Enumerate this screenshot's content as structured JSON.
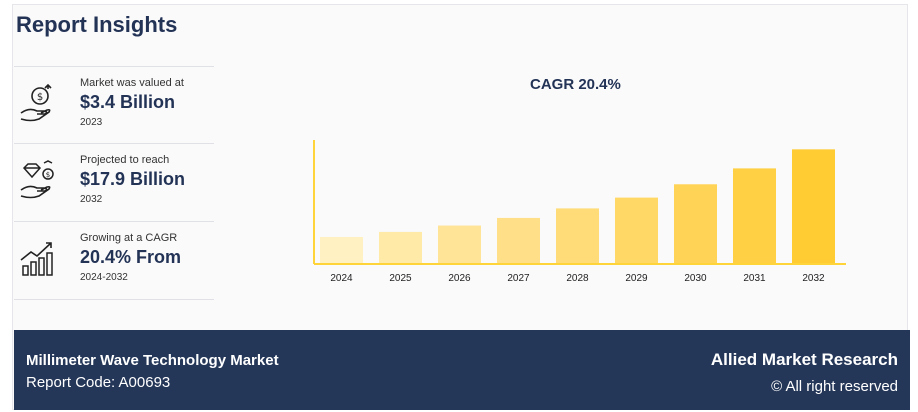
{
  "header": {
    "title": "Report Insights"
  },
  "stats": [
    {
      "label": "Market was valued at",
      "value": "$3.4 Billion",
      "period": "2023",
      "icon": "money-hand-icon"
    },
    {
      "label": "Projected to reach",
      "value": "$17.9 Billion",
      "period": "2032",
      "icon": "diamond-coin-hand-icon"
    },
    {
      "label": "Growing at a CAGR",
      "value": "20.4% From",
      "period": "2024-2032",
      "icon": "growth-chart-icon"
    }
  ],
  "chart_data": {
    "type": "bar",
    "title": "CAGR 20.4%",
    "categories": [
      "2024",
      "2025",
      "2026",
      "2027",
      "2028",
      "2029",
      "2030",
      "2031",
      "2032"
    ],
    "values": [
      4.1,
      4.9,
      5.9,
      7.1,
      8.6,
      10.3,
      12.4,
      14.9,
      17.9
    ],
    "ylim": [
      0,
      20
    ],
    "grid": false,
    "colors": [
      "#fff1c2",
      "#ffeaa8",
      "#ffe498",
      "#ffe088",
      "#ffdc78",
      "#ffd866",
      "#ffd456",
      "#ffd043",
      "#ffcc33"
    ]
  },
  "footer": {
    "market_name": "Millimeter Wave Technology Market",
    "report_code": "Report Code: A00693",
    "brand": "Allied Market Research",
    "rights": "© All right reserved"
  }
}
